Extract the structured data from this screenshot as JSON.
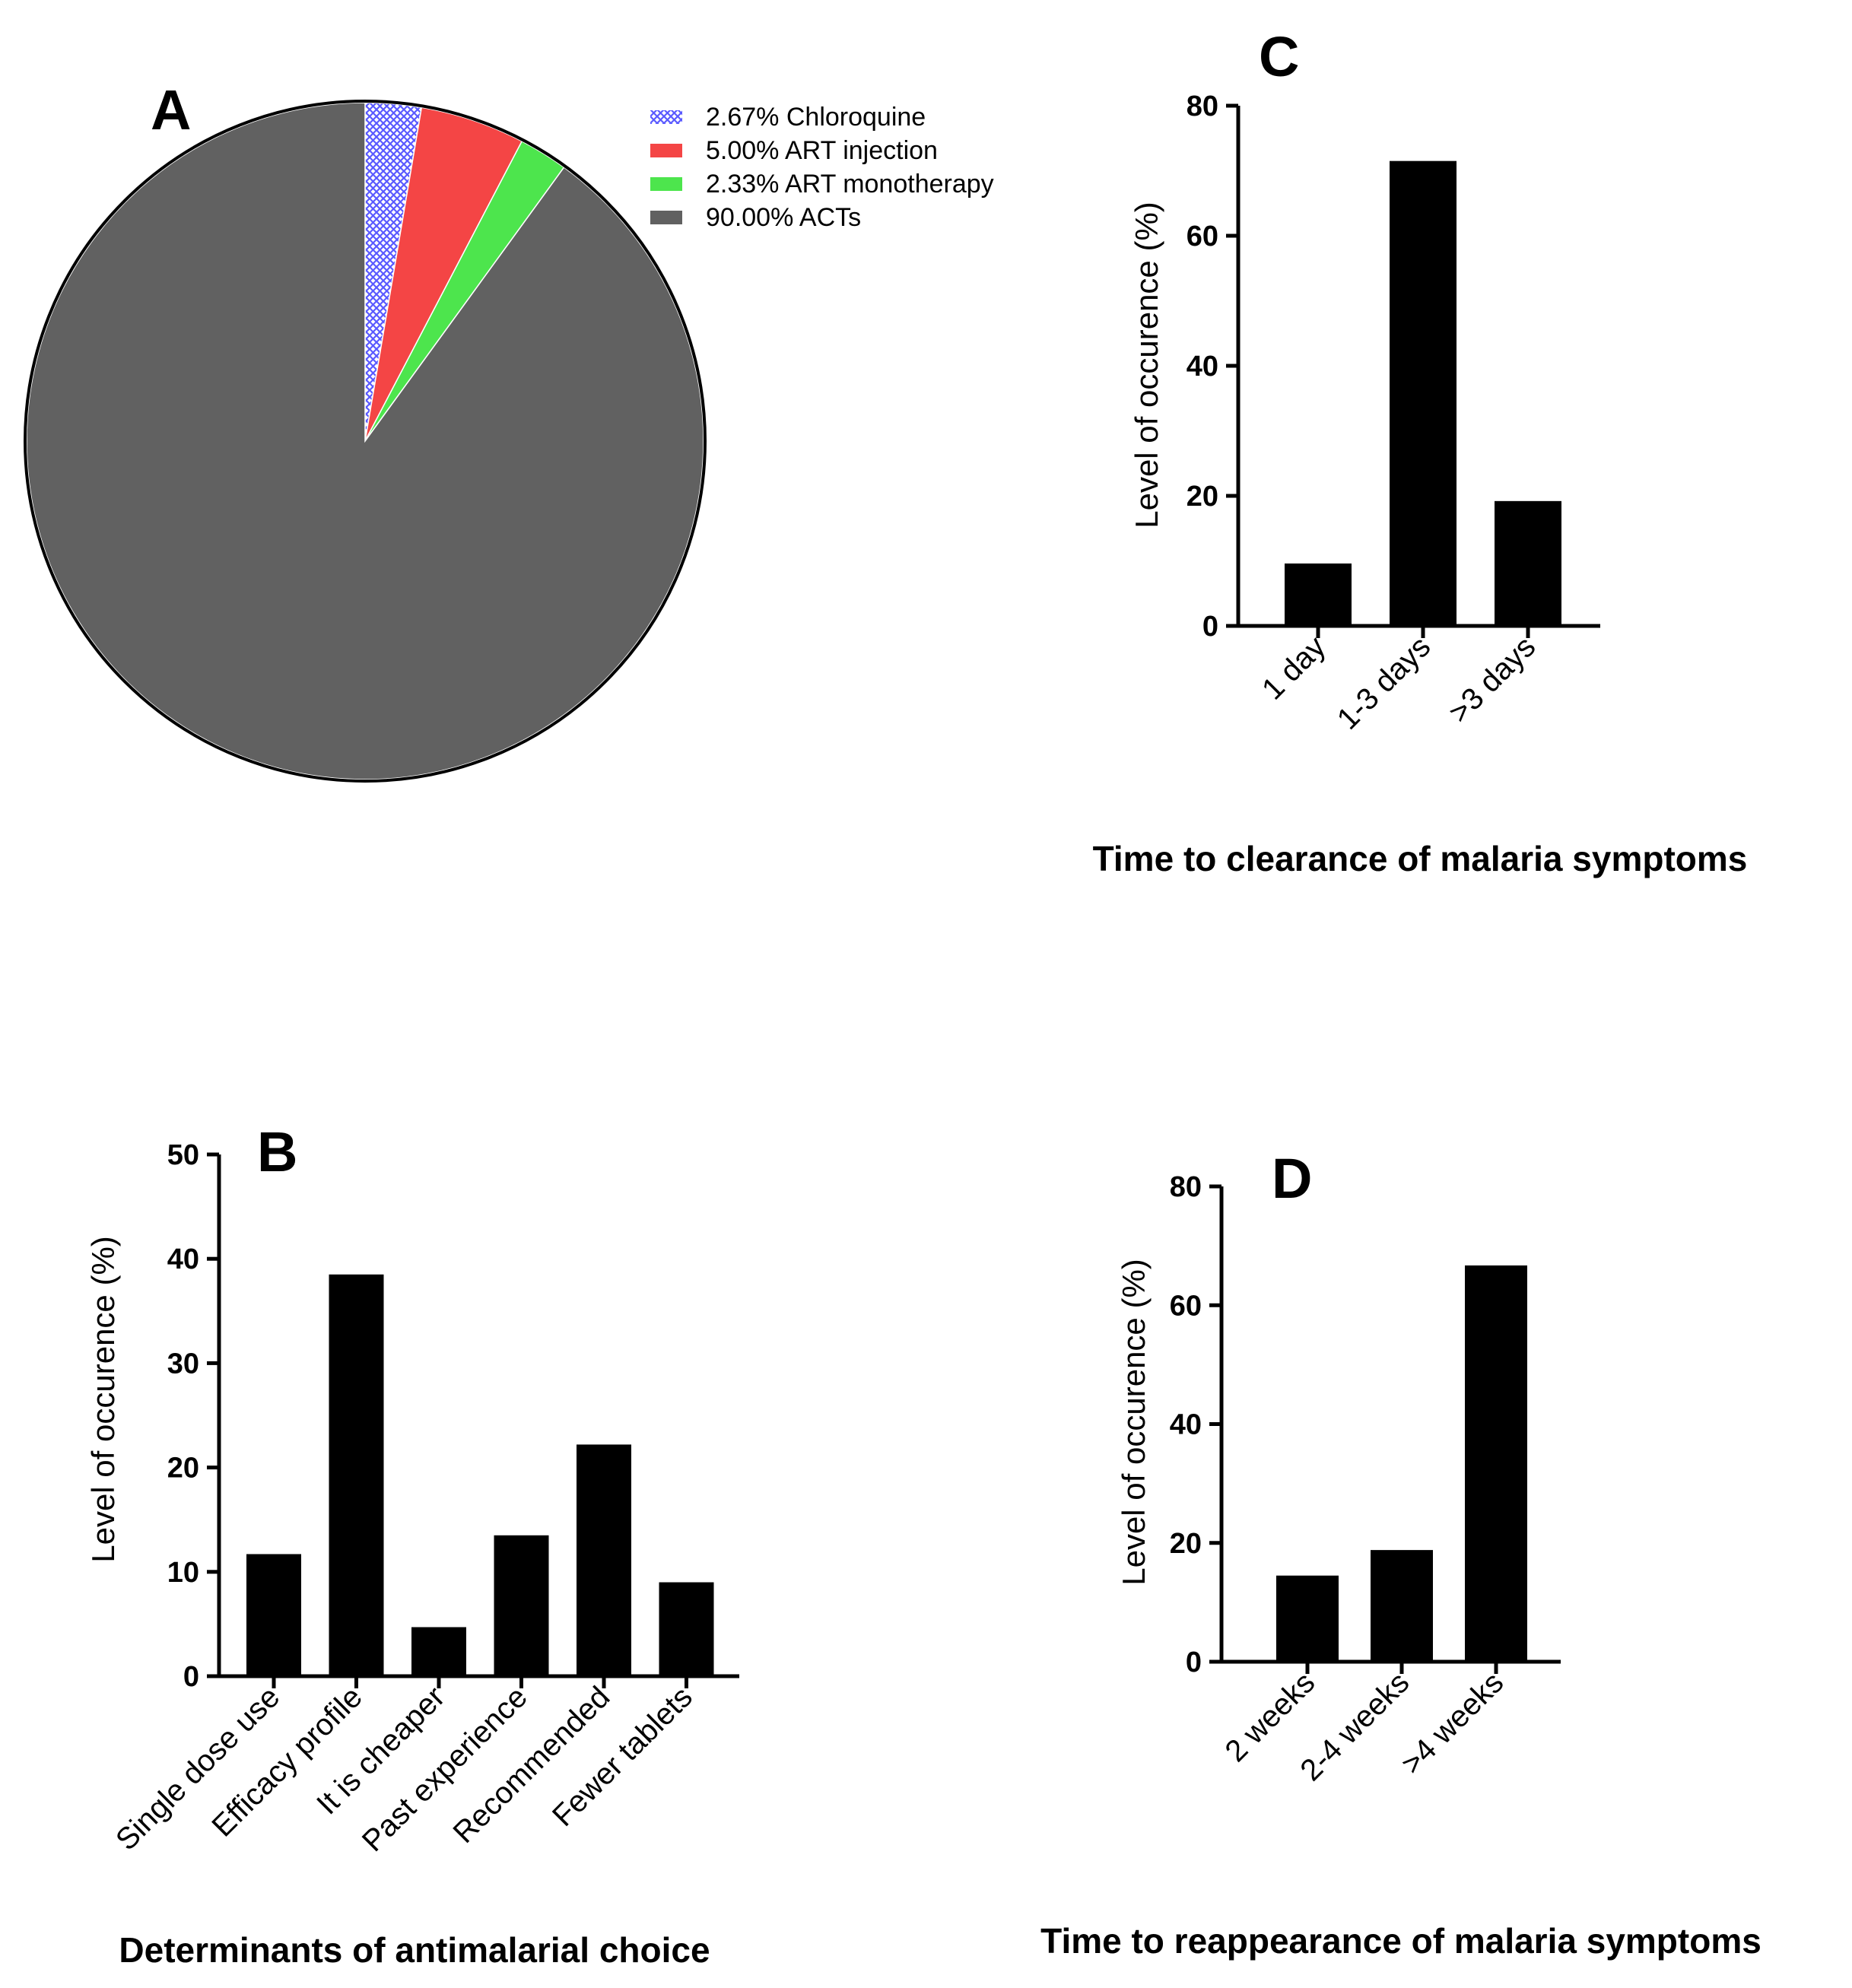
{
  "chart_data": [
    {
      "id": "A",
      "type": "pie",
      "panel_label": "A",
      "slices": [
        {
          "label": "2.67%  Chloroquine",
          "name": "Chloroquine",
          "value": 2.67,
          "color": "#6b6bff",
          "pattern": "crosshatch"
        },
        {
          "label": "5.00%  ART injection",
          "name": "ART injection",
          "value": 5.0,
          "color": "#f44545"
        },
        {
          "label": "2.33%  ART monotherapy",
          "name": "ART monotherapy",
          "value": 2.33,
          "color": "#4de54d"
        },
        {
          "label": "90.00%  ACTs",
          "name": "ACTs",
          "value": 90.0,
          "color": "#616161"
        }
      ]
    },
    {
      "id": "B",
      "type": "bar",
      "panel_label": "B",
      "categories": [
        "Single dose use",
        "Efficacy profile",
        "It is cheaper",
        "Past experience",
        "Recommended",
        "Fewer tablets"
      ],
      "values": [
        11.7,
        38.5,
        4.7,
        13.5,
        22.2,
        9.0
      ],
      "xlabel": "Determinants of antimalarial choice",
      "ylabel": "Level of occurence (%)",
      "ylim": [
        0,
        50
      ],
      "yticks": [
        0,
        10,
        20,
        30,
        40,
        50
      ],
      "bar_color": "#000000"
    },
    {
      "id": "C",
      "type": "bar",
      "panel_label": "C",
      "categories": [
        "1 day",
        "1-3 days",
        ">3 days"
      ],
      "values": [
        9.6,
        71.5,
        19.2
      ],
      "xlabel": "Time to clearance of malaria symptoms",
      "ylabel": "Level of occurence (%)",
      "ylim": [
        0,
        80
      ],
      "yticks": [
        0,
        20,
        40,
        60,
        80
      ],
      "bar_color": "#000000"
    },
    {
      "id": "D",
      "type": "bar",
      "panel_label": "D",
      "categories": [
        "2 weeks",
        "2-4 weeks",
        ">4 weeks"
      ],
      "values": [
        14.5,
        18.8,
        66.7
      ],
      "xlabel": "Time to reappearance of malaria symptoms",
      "ylabel": "Level of occurence (%)",
      "ylim": [
        0,
        80
      ],
      "yticks": [
        0,
        20,
        40,
        60,
        80
      ],
      "bar_color": "#000000"
    }
  ]
}
